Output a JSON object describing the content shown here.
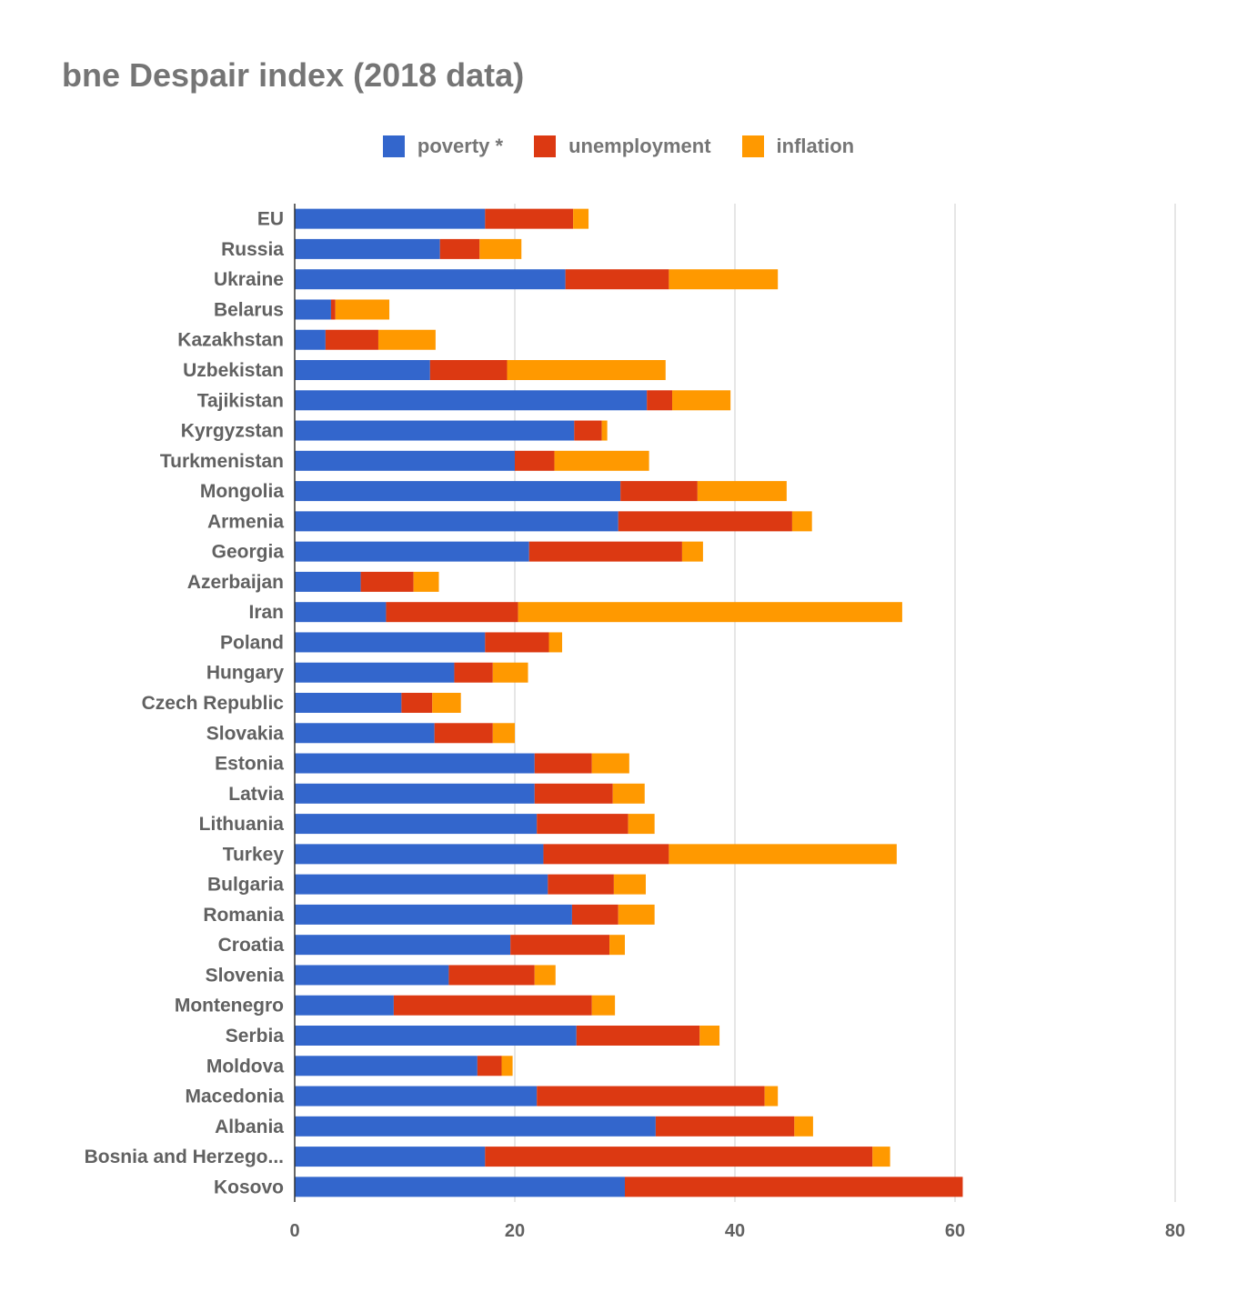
{
  "chart_data": {
    "type": "bar",
    "orientation": "horizontal",
    "stacked": true,
    "title": "bne Despair index (2018 data)",
    "xlabel": "",
    "ylabel": "",
    "xlim": [
      0,
      80
    ],
    "xticks": [
      0,
      20,
      40,
      60,
      80
    ],
    "grid": true,
    "legend_position": "top-center",
    "categories": [
      "EU",
      "Russia",
      "Ukraine",
      "Belarus",
      "Kazakhstan",
      "Uzbekistan",
      "Tajikistan",
      "Kyrgyzstan",
      "Turkmenistan",
      "Mongolia",
      "Armenia",
      "Georgia",
      "Azerbaijan",
      "Iran",
      "Poland",
      "Hungary",
      "Czech Republic",
      "Slovakia",
      "Estonia",
      "Latvia",
      "Lithuania",
      "Turkey",
      "Bulgaria",
      "Romania",
      "Croatia",
      "Slovenia",
      "Montenegro",
      "Serbia",
      "Moldova",
      "Macedonia",
      "Albania",
      "Bosnia and Herzego...",
      "Kosovo"
    ],
    "series": [
      {
        "name": "poverty *",
        "color": "#3366cc",
        "values": [
          17.3,
          13.2,
          24.6,
          3.3,
          2.8,
          12.3,
          32.0,
          25.4,
          20.0,
          29.6,
          29.4,
          21.3,
          6.0,
          8.3,
          17.3,
          14.5,
          9.7,
          12.7,
          21.8,
          21.8,
          22.0,
          22.6,
          23.0,
          25.2,
          19.6,
          14.0,
          9.0,
          25.6,
          16.6,
          22.0,
          32.8,
          17.3,
          30.0
        ]
      },
      {
        "name": "unemployment",
        "color": "#dc3912",
        "values": [
          8.0,
          3.6,
          9.4,
          0.4,
          4.8,
          7.0,
          2.3,
          2.5,
          3.6,
          7.0,
          15.8,
          13.9,
          4.8,
          12.0,
          5.8,
          3.5,
          2.8,
          5.3,
          5.2,
          7.1,
          8.3,
          11.4,
          6.0,
          4.2,
          9.0,
          7.8,
          18.0,
          11.2,
          2.2,
          20.7,
          12.6,
          35.2,
          30.7
        ]
      },
      {
        "name": "inflation",
        "color": "#ff9900",
        "values": [
          1.4,
          3.8,
          9.9,
          4.9,
          5.2,
          14.4,
          5.3,
          0.5,
          8.6,
          8.1,
          1.8,
          1.9,
          2.3,
          34.9,
          1.2,
          3.2,
          2.6,
          2.0,
          3.4,
          2.9,
          2.4,
          20.7,
          2.9,
          3.3,
          1.4,
          1.9,
          2.1,
          1.8,
          1.0,
          1.2,
          1.7,
          1.6,
          0.0
        ]
      }
    ]
  }
}
